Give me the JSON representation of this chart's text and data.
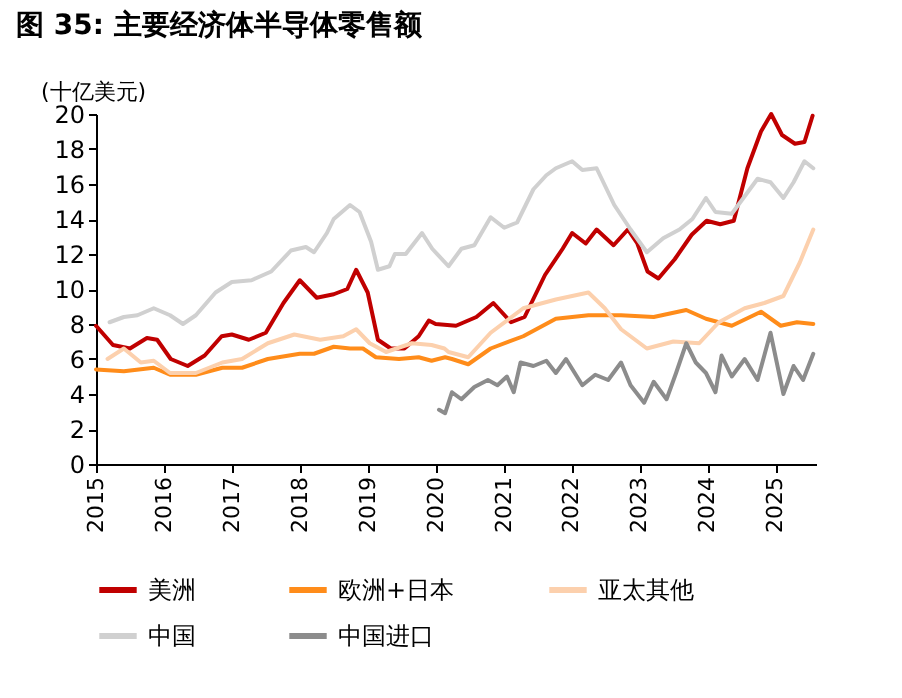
{
  "chart_data": {
    "type": "line",
    "title": "图 35: 主要经济体半导体零售额",
    "ylabel": "(十亿美元)",
    "xlim": [
      2015,
      2025.6
    ],
    "xticks": [
      2015,
      2016,
      2017,
      2018,
      2019,
      2020,
      2021,
      2022,
      2023,
      2024,
      2025
    ],
    "ylim": [
      0,
      20
    ],
    "yticks": [
      0,
      2,
      4,
      6,
      8,
      10,
      12,
      14,
      16,
      18,
      20
    ],
    "grid": false,
    "legend": "bottom",
    "series": [
      {
        "name": "美洲",
        "color": "#c00000",
        "x": [
          2015.0,
          2015.25,
          2015.5,
          2015.75,
          2015.9,
          2016.1,
          2016.35,
          2016.6,
          2016.85,
          2017.0,
          2017.25,
          2017.5,
          2017.76,
          2018.0,
          2018.25,
          2018.5,
          2018.7,
          2018.83,
          2019.0,
          2019.15,
          2019.34,
          2019.54,
          2019.75,
          2019.9,
          2020.0,
          2020.3,
          2020.6,
          2020.85,
          2021.11,
          2021.31,
          2021.61,
          2021.87,
          2022.01,
          2022.21,
          2022.37,
          2022.62,
          2022.83,
          2022.97,
          2023.12,
          2023.28,
          2023.52,
          2023.77,
          2023.99,
          2024.19,
          2024.39,
          2024.59,
          2024.79,
          2024.94,
          2025.1,
          2025.29,
          2025.43,
          2025.55
        ],
        "values": [
          7.9,
          6.8,
          6.6,
          7.2,
          7.1,
          6.0,
          5.6,
          6.2,
          7.3,
          7.4,
          7.1,
          7.5,
          9.2,
          10.5,
          9.5,
          9.7,
          10.0,
          11.1,
          9.8,
          7.1,
          6.6,
          6.6,
          7.3,
          8.2,
          8.0,
          7.9,
          8.4,
          9.2,
          8.1,
          8.4,
          10.8,
          12.3,
          13.2,
          12.6,
          13.4,
          12.5,
          13.4,
          12.6,
          11.0,
          10.6,
          11.7,
          13.1,
          13.9,
          13.7,
          13.9,
          16.9,
          19.0,
          20.0,
          18.8,
          18.3,
          18.4,
          19.9
        ]
      },
      {
        "name": "欧洲+日本",
        "color": "#ff8c1a",
        "x": [
          2015.0,
          2015.41,
          2015.85,
          2016.09,
          2016.47,
          2016.86,
          2017.15,
          2017.53,
          2018.0,
          2018.21,
          2018.5,
          2018.74,
          2018.93,
          2019.12,
          2019.46,
          2019.75,
          2019.94,
          2020.14,
          2020.24,
          2020.48,
          2020.81,
          2021.29,
          2021.77,
          2022.25,
          2022.73,
          2023.21,
          2023.69,
          2023.98,
          2024.36,
          2024.79,
          2025.08,
          2025.32,
          2025.56
        ],
        "values": [
          5.4,
          5.3,
          5.5,
          5.1,
          5.1,
          5.5,
          5.5,
          6.0,
          6.3,
          6.3,
          6.7,
          6.6,
          6.6,
          6.1,
          6.0,
          6.1,
          5.9,
          6.1,
          6.0,
          5.7,
          6.6,
          7.3,
          8.3,
          8.5,
          8.5,
          8.4,
          8.8,
          8.3,
          7.9,
          8.7,
          7.9,
          8.1,
          8.0
        ]
      },
      {
        "name": "亚太其他",
        "color": "#fcd0ad",
        "x": [
          2015.17,
          2015.41,
          2015.66,
          2015.85,
          2016.09,
          2016.47,
          2016.86,
          2017.15,
          2017.53,
          2017.92,
          2018.3,
          2018.64,
          2018.83,
          2019.03,
          2019.27,
          2019.65,
          2019.94,
          2020.13,
          2020.19,
          2020.48,
          2020.81,
          2021.29,
          2021.77,
          2022.25,
          2022.49,
          2022.73,
          2023.11,
          2023.5,
          2023.88,
          2024.17,
          2024.55,
          2024.84,
          2025.12,
          2025.36,
          2025.56
        ],
        "values": [
          6.0,
          6.6,
          5.8,
          5.9,
          5.2,
          5.2,
          5.8,
          6.0,
          6.9,
          7.4,
          7.1,
          7.3,
          7.7,
          6.9,
          6.4,
          6.9,
          6.8,
          6.6,
          6.4,
          6.1,
          7.5,
          8.9,
          9.4,
          9.8,
          8.9,
          7.7,
          6.6,
          7.0,
          6.9,
          8.1,
          8.9,
          9.2,
          9.6,
          11.5,
          13.4
        ]
      },
      {
        "name": "中国",
        "color": "#d0d0d0",
        "x": [
          2015.2,
          2015.41,
          2015.61,
          2015.85,
          2016.09,
          2016.28,
          2016.47,
          2016.76,
          2017.0,
          2017.29,
          2017.58,
          2017.87,
          2018.09,
          2018.21,
          2018.4,
          2018.5,
          2018.74,
          2018.88,
          2019.05,
          2019.15,
          2019.32,
          2019.4,
          2019.56,
          2019.8,
          2019.95,
          2020.19,
          2020.38,
          2020.57,
          2020.81,
          2021.01,
          2021.2,
          2021.44,
          2021.63,
          2021.77,
          2022.01,
          2022.16,
          2022.37,
          2022.63,
          2022.87,
          2023.11,
          2023.35,
          2023.59,
          2023.78,
          2023.98,
          2024.12,
          2024.36,
          2024.55,
          2024.74,
          2024.93,
          2025.12,
          2025.27,
          2025.43,
          2025.56
        ],
        "values": [
          8.1,
          8.4,
          8.5,
          8.9,
          8.5,
          8.0,
          8.5,
          9.8,
          10.4,
          10.5,
          11.0,
          12.2,
          12.4,
          12.1,
          13.2,
          14.0,
          14.8,
          14.4,
          12.7,
          11.1,
          11.3,
          12.0,
          12.0,
          13.2,
          12.3,
          11.3,
          12.3,
          12.5,
          14.1,
          13.5,
          13.8,
          15.7,
          16.5,
          16.9,
          17.3,
          16.8,
          16.9,
          14.8,
          13.4,
          12.1,
          12.9,
          13.4,
          14.0,
          15.2,
          14.4,
          14.3,
          15.3,
          16.3,
          16.1,
          15.2,
          16.1,
          17.3,
          16.9
        ]
      },
      {
        "name": "中国进口",
        "color": "#8c8c8c",
        "x": [
          2020.05,
          2020.14,
          2020.24,
          2020.38,
          2020.57,
          2020.77,
          2020.91,
          2021.05,
          2021.15,
          2021.25,
          2021.44,
          2021.63,
          2021.77,
          2021.92,
          2022.16,
          2022.35,
          2022.54,
          2022.73,
          2022.87,
          2023.07,
          2023.21,
          2023.4,
          2023.54,
          2023.69,
          2023.83,
          2023.98,
          2024.12,
          2024.21,
          2024.36,
          2024.55,
          2024.74,
          2024.93,
          2025.12,
          2025.27,
          2025.41,
          2025.56
        ],
        "values": [
          3.1,
          2.9,
          4.1,
          3.7,
          4.4,
          4.8,
          4.5,
          5.0,
          4.1,
          5.8,
          5.6,
          5.9,
          5.2,
          6.0,
          4.5,
          5.1,
          4.8,
          5.8,
          4.5,
          3.5,
          4.7,
          3.7,
          5.2,
          6.9,
          5.8,
          5.2,
          4.1,
          6.2,
          5.0,
          6.0,
          4.8,
          7.5,
          4.0,
          5.6,
          4.8,
          6.3
        ]
      }
    ]
  }
}
